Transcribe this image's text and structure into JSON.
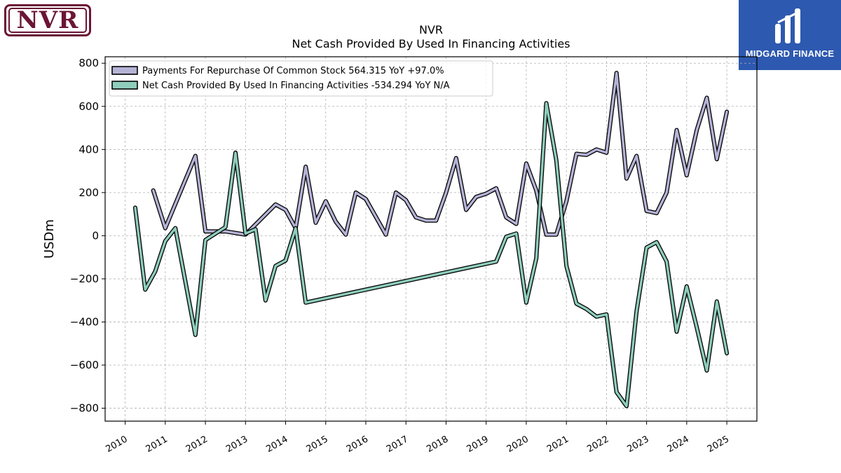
{
  "header": {
    "company_logo": "NVR",
    "brand_logo": "MIDGARD FINANCE"
  },
  "chart_data": {
    "type": "line",
    "title": "NVR",
    "subtitle": "Net Cash Provided By Used In Financing Activities",
    "xlabel": "",
    "ylabel": "USDm",
    "xlim": [
      2009.5,
      2025.75
    ],
    "ylim": [
      -860,
      830
    ],
    "yticks": [
      -800,
      -600,
      -400,
      -200,
      0,
      200,
      400,
      600,
      800
    ],
    "xticks": [
      "2010",
      "2011",
      "2012",
      "2013",
      "2014",
      "2015",
      "2016",
      "2017",
      "2018",
      "2019",
      "2020",
      "2021",
      "2022",
      "2023",
      "2024",
      "2025"
    ],
    "grid": true,
    "legend_position": "top-left",
    "series": [
      {
        "name": "Payments For Repurchase Of Common Stock",
        "legend_label": "Payments For Repurchase Of Common Stock  564.315 YoY +97.0%",
        "color": "#b5b3d6",
        "points": [
          [
            2010.7,
            210
          ],
          [
            2011.0,
            35
          ],
          [
            2011.75,
            370
          ],
          [
            2012.0,
            20
          ],
          [
            2012.5,
            20
          ],
          [
            2013.0,
            5
          ],
          [
            2013.75,
            145
          ],
          [
            2014.0,
            120
          ],
          [
            2014.25,
            35
          ],
          [
            2014.5,
            320
          ],
          [
            2014.75,
            60
          ],
          [
            2015.0,
            160
          ],
          [
            2015.25,
            65
          ],
          [
            2015.5,
            5
          ],
          [
            2015.75,
            200
          ],
          [
            2016.0,
            170
          ],
          [
            2016.5,
            5
          ],
          [
            2016.75,
            200
          ],
          [
            2017.0,
            165
          ],
          [
            2017.25,
            85
          ],
          [
            2017.5,
            70
          ],
          [
            2017.75,
            70
          ],
          [
            2018.0,
            200
          ],
          [
            2018.25,
            360
          ],
          [
            2018.5,
            120
          ],
          [
            2018.75,
            180
          ],
          [
            2019.0,
            195
          ],
          [
            2019.25,
            220
          ],
          [
            2019.5,
            85
          ],
          [
            2019.75,
            55
          ],
          [
            2020.0,
            335
          ],
          [
            2020.25,
            210
          ],
          [
            2020.5,
            5
          ],
          [
            2020.75,
            5
          ],
          [
            2021.0,
            160
          ],
          [
            2021.25,
            380
          ],
          [
            2021.5,
            375
          ],
          [
            2021.75,
            400
          ],
          [
            2022.0,
            385
          ],
          [
            2022.25,
            755
          ],
          [
            2022.5,
            265
          ],
          [
            2022.75,
            370
          ],
          [
            2023.0,
            115
          ],
          [
            2023.25,
            105
          ],
          [
            2023.5,
            200
          ],
          [
            2023.75,
            490
          ],
          [
            2024.0,
            280
          ],
          [
            2024.25,
            490
          ],
          [
            2024.5,
            640
          ],
          [
            2024.75,
            355
          ],
          [
            2025.0,
            575
          ]
        ]
      },
      {
        "name": "Net Cash Provided By Used In Financing Activities",
        "legend_label": "Net Cash Provided By Used In Financing Activities  -534.294 YoY N/A",
        "color": "#8ecdbc",
        "points": [
          [
            2010.25,
            130
          ],
          [
            2010.5,
            -250
          ],
          [
            2010.75,
            -165
          ],
          [
            2011.0,
            -25
          ],
          [
            2011.25,
            35
          ],
          [
            2011.75,
            -460
          ],
          [
            2012.0,
            -20
          ],
          [
            2012.5,
            40
          ],
          [
            2012.75,
            385
          ],
          [
            2013.0,
            10
          ],
          [
            2013.25,
            30
          ],
          [
            2013.5,
            -300
          ],
          [
            2013.75,
            -140
          ],
          [
            2014.0,
            -115
          ],
          [
            2014.25,
            35
          ],
          [
            2014.5,
            -310
          ],
          [
            2019.25,
            -120
          ],
          [
            2019.5,
            -5
          ],
          [
            2019.75,
            10
          ],
          [
            2020.0,
            -310
          ],
          [
            2020.25,
            -105
          ],
          [
            2020.5,
            615
          ],
          [
            2020.75,
            350
          ],
          [
            2021.0,
            -140
          ],
          [
            2021.25,
            -315
          ],
          [
            2021.5,
            -340
          ],
          [
            2021.75,
            -375
          ],
          [
            2022.0,
            -365
          ],
          [
            2022.25,
            -725
          ],
          [
            2022.5,
            -790
          ],
          [
            2022.75,
            -350
          ],
          [
            2023.0,
            -55
          ],
          [
            2023.25,
            -30
          ],
          [
            2023.5,
            -120
          ],
          [
            2023.75,
            -445
          ],
          [
            2024.0,
            -235
          ],
          [
            2024.25,
            -425
          ],
          [
            2024.5,
            -625
          ],
          [
            2024.75,
            -305
          ],
          [
            2025.0,
            -545
          ]
        ]
      }
    ]
  }
}
